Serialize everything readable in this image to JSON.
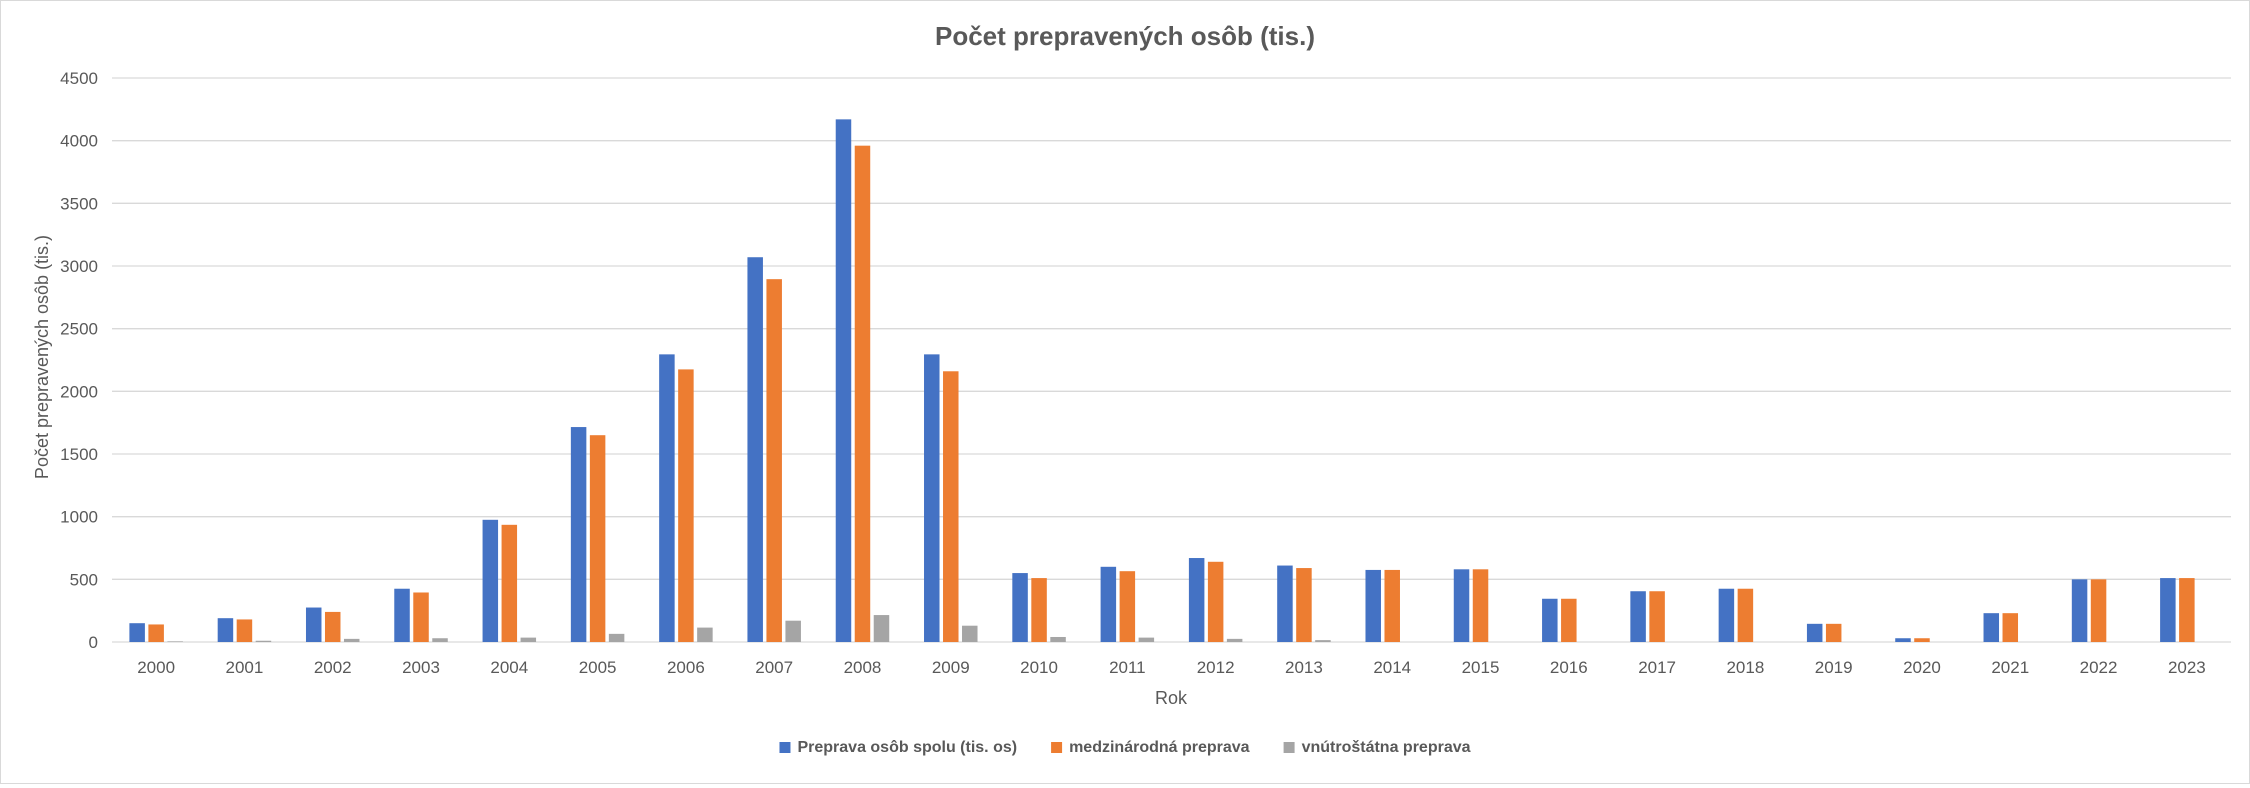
{
  "chart_data": {
    "type": "bar",
    "title": "Počet prepravených osôb (tis.)",
    "xlabel": "Rok",
    "ylabel": "Počet prepravených osôb (tis.)",
    "ylim": [
      0,
      4500
    ],
    "yticks": [
      "0",
      "500",
      "1000",
      "1500",
      "2000",
      "2500",
      "3000",
      "3500",
      "4000",
      "4500"
    ],
    "grid": true,
    "legend_position": "bottom",
    "categories": [
      "2000",
      "2001",
      "2002",
      "2003",
      "2004",
      "2005",
      "2006",
      "2007",
      "2008",
      "2009",
      "2010",
      "2011",
      "2012",
      "2013",
      "2014",
      "2015",
      "2016",
      "2017",
      "2018",
      "2019",
      "2020",
      "2021",
      "2022",
      "2023"
    ],
    "series": [
      {
        "name": "Preprava osôb spolu (tis. os)",
        "color": "#4472C4",
        "values": [
          150,
          190,
          275,
          425,
          975,
          1715,
          2295,
          3070,
          4170,
          2295,
          550,
          600,
          670,
          610,
          575,
          580,
          345,
          405,
          425,
          145,
          30,
          230,
          500,
          510
        ]
      },
      {
        "name": "medzinárodná preprava",
        "color": "#ED7D31",
        "values": [
          140,
          180,
          240,
          395,
          935,
          1650,
          2175,
          2895,
          3960,
          2160,
          510,
          565,
          640,
          590,
          575,
          580,
          345,
          405,
          425,
          145,
          30,
          230,
          500,
          510
        ]
      },
      {
        "name": "vnútroštátna preprava",
        "color": "#A5A5A5",
        "values": [
          5,
          10,
          25,
          30,
          35,
          65,
          115,
          170,
          215,
          130,
          40,
          35,
          25,
          15,
          0,
          0,
          0,
          0,
          0,
          0,
          0,
          0,
          0,
          0
        ]
      }
    ]
  }
}
